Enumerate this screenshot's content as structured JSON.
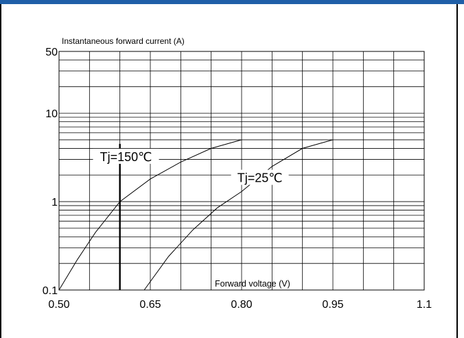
{
  "chart_data": {
    "type": "line",
    "xlabel": "Forward voltage (V)",
    "ylabel": "Instantaneous forward current (A)",
    "x_scale": "linear",
    "y_scale": "log",
    "xlim": [
      0.5,
      1.1
    ],
    "ylim": [
      0.1,
      50
    ],
    "x_ticks": [
      0.5,
      0.65,
      0.8,
      0.95,
      1.1
    ],
    "x_tick_labels": [
      "0.50",
      "0.65",
      "0.80",
      "0.95",
      "1.1"
    ],
    "y_ticks": [
      0.1,
      1,
      10,
      50
    ],
    "y_tick_labels": [
      "0.1",
      "1",
      "10",
      "50"
    ],
    "grid": true,
    "series": [
      {
        "name": "Tj=150℃",
        "x": [
          0.5,
          0.53,
          0.56,
          0.6,
          0.65,
          0.7,
          0.75,
          0.8
        ],
        "y": [
          0.1,
          0.22,
          0.45,
          1.0,
          1.8,
          2.8,
          4.0,
          5.0
        ]
      },
      {
        "name": "Tj=25℃",
        "x": [
          0.64,
          0.68,
          0.72,
          0.76,
          0.8,
          0.85,
          0.9,
          0.95
        ],
        "y": [
          0.1,
          0.24,
          0.48,
          0.85,
          1.3,
          2.5,
          4.0,
          5.0
        ]
      }
    ],
    "annotations": [
      {
        "text": "Tj=150℃",
        "x": 0.61,
        "y": 3.2
      },
      {
        "text": "Tj=25℃",
        "x": 0.83,
        "y": 1.85
      }
    ]
  },
  "colors": {
    "frame_top": "#1f5fa8",
    "line": "#000000"
  }
}
